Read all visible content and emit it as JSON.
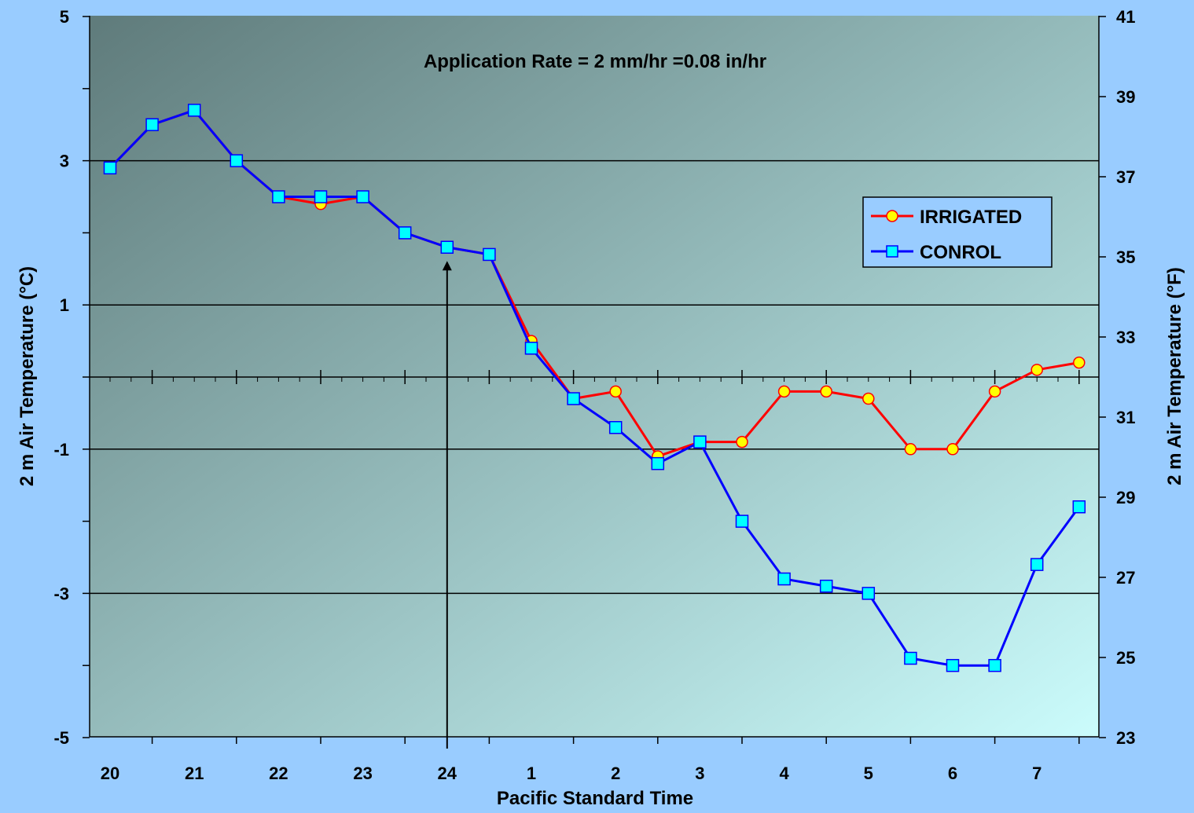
{
  "chart_data": {
    "type": "line",
    "title": "",
    "annotation": "Application Rate = 2 mm/hr =0.08 in/hr",
    "xlabel": "Pacific Standard Time",
    "ylabel_left": "2 m Air Temperature (°C)",
    "ylabel_right": "2 m Air Temperature (°F)",
    "x_tick_labels": [
      "20",
      "21",
      "22",
      "23",
      "24",
      "1",
      "2",
      "3",
      "4",
      "5",
      "6",
      "7"
    ],
    "x_range": [
      19.8,
      31.8
    ],
    "ylim_left": [
      -5,
      5
    ],
    "yticks_left": [
      5,
      3,
      1,
      -1,
      -3,
      -5
    ],
    "ylim_right": [
      23,
      41
    ],
    "yticks_right": [
      41,
      39,
      37,
      35,
      33,
      31,
      29,
      27,
      25,
      23
    ],
    "grid_lines_y": [
      3,
      1,
      -1,
      -3
    ],
    "arrow_marker": {
      "x": 24,
      "from_y": -5,
      "to_y": 1.5
    },
    "legend_position": "upper-right",
    "colors": {
      "plot_gradient_start": "#5f7b7b",
      "plot_gradient_end": "#cbfcfc",
      "irrigated_line": "#ff0000",
      "irrigated_marker": "#ffff00",
      "control_line": "#0000ff",
      "control_marker": "#00ffff",
      "page_background": "#99ccff"
    },
    "series": [
      {
        "name": "IRRIGATED",
        "marker": "circle",
        "x": [
          20,
          20.5,
          21,
          21.5,
          22,
          22.5,
          23,
          23.5,
          24,
          24.5,
          25,
          25.5,
          26,
          26.5,
          27,
          27.5,
          28,
          28.5,
          29,
          29.5,
          30,
          30.5,
          31,
          31.5
        ],
        "y": [
          2.9,
          3.5,
          3.7,
          3.0,
          2.5,
          2.4,
          2.5,
          2.0,
          1.8,
          1.7,
          0.5,
          -0.3,
          -0.2,
          -1.1,
          -0.9,
          -0.9,
          -0.2,
          -0.2,
          -0.3,
          -1.0,
          -1.0,
          -0.2,
          0.1,
          0.2
        ]
      },
      {
        "name": "CONROL",
        "marker": "square",
        "x": [
          20,
          20.5,
          21,
          21.5,
          22,
          22.5,
          23,
          23.5,
          24,
          24.5,
          25,
          25.5,
          26,
          26.5,
          27,
          27.5,
          28,
          28.5,
          29,
          29.5,
          30,
          30.5,
          31,
          31.5
        ],
        "y": [
          2.9,
          3.5,
          3.7,
          3.0,
          2.5,
          2.5,
          2.5,
          2.0,
          1.8,
          1.7,
          0.4,
          -0.3,
          -0.7,
          -1.2,
          -0.9,
          -2.0,
          -2.8,
          -2.9,
          -3.0,
          -3.9,
          -4.0,
          -4.0,
          -2.6,
          -1.8
        ]
      }
    ]
  }
}
